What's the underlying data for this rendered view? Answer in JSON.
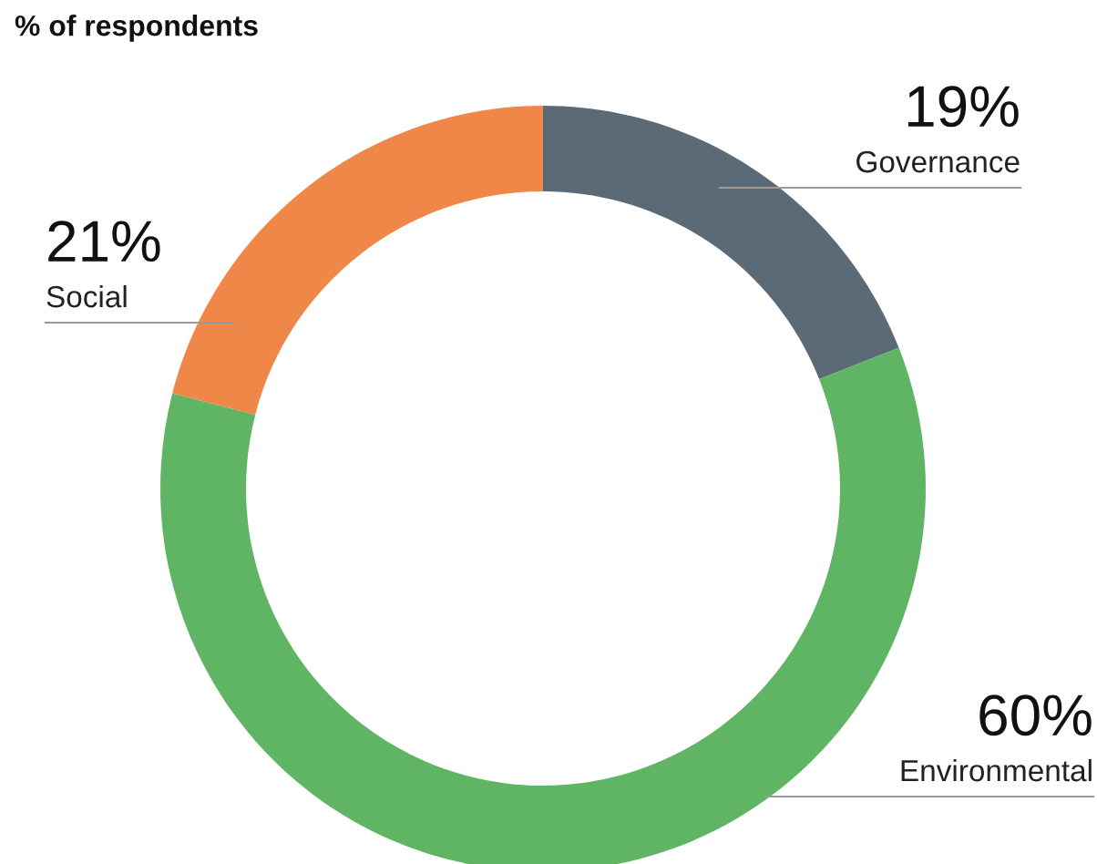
{
  "chart_data": {
    "type": "donut",
    "title": "% of respondents",
    "categories": [
      "Governance",
      "Environmental",
      "Social"
    ],
    "values": [
      19,
      60,
      21
    ],
    "colors": [
      "#5a6a77",
      "#5fb564",
      "#ef8749"
    ],
    "value_labels": [
      "19%",
      "60%",
      "21%"
    ],
    "legend": false
  }
}
